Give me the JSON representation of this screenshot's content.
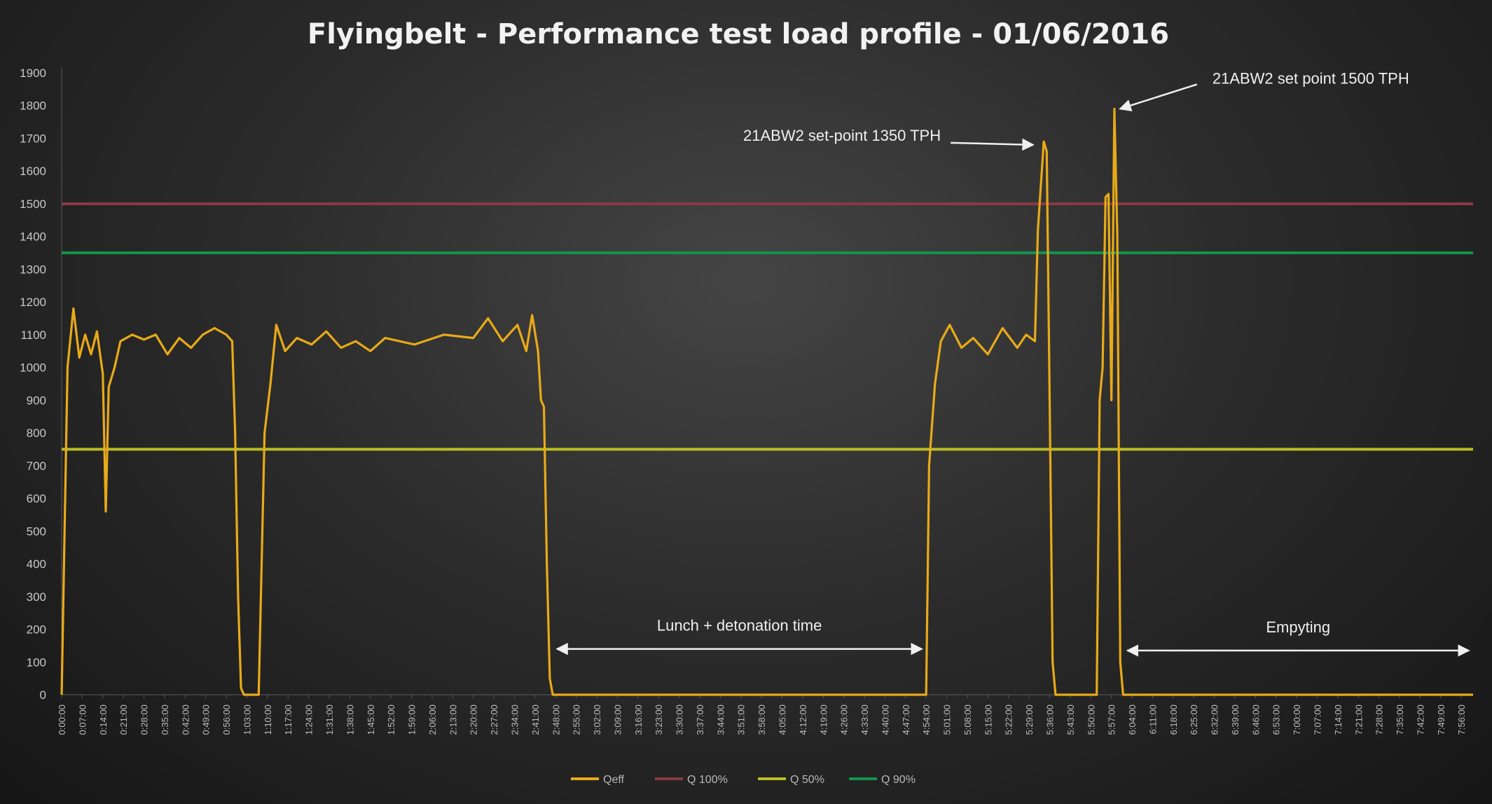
{
  "chart_data": {
    "type": "line",
    "title": "Flyingbelt - Performance test load profile - 01/06/2016",
    "xlabel": "",
    "ylabel": "",
    "ylim": [
      0,
      1900
    ],
    "yticks": [
      0,
      100,
      200,
      300,
      400,
      500,
      600,
      700,
      800,
      900,
      1000,
      1100,
      1200,
      1300,
      1400,
      1500,
      1600,
      1700,
      1800,
      1900
    ],
    "xlim": [
      "0:00:00",
      "8:00:00"
    ],
    "x_tick_interval_min": 7,
    "grid": false,
    "legend": "bottom",
    "series": [
      {
        "name": "Qeff",
        "color": "#e8aa18",
        "points": [
          [
            "0:00",
            0
          ],
          [
            "0:02",
            1000
          ],
          [
            "0:04",
            1180
          ],
          [
            "0:06",
            1030
          ],
          [
            "0:08",
            1100
          ],
          [
            "0:10",
            1040
          ],
          [
            "0:12",
            1110
          ],
          [
            "0:14",
            980
          ],
          [
            "0:15",
            560
          ],
          [
            "0:16",
            940
          ],
          [
            "0:18",
            1000
          ],
          [
            "0:20",
            1080
          ],
          [
            "0:24",
            1100
          ],
          [
            "0:28",
            1085
          ],
          [
            "0:32",
            1100
          ],
          [
            "0:36",
            1040
          ],
          [
            "0:40",
            1090
          ],
          [
            "0:44",
            1060
          ],
          [
            "0:48",
            1100
          ],
          [
            "0:52",
            1120
          ],
          [
            "0:56",
            1100
          ],
          [
            "0:58",
            1080
          ],
          [
            "0:59",
            800
          ],
          [
            "1:00",
            300
          ],
          [
            "1:01",
            20
          ],
          [
            "1:02",
            0
          ],
          [
            "1:05",
            0
          ],
          [
            "1:07",
            0
          ],
          [
            "1:08",
            400
          ],
          [
            "1:09",
            800
          ],
          [
            "1:11",
            950
          ],
          [
            "1:13",
            1130
          ],
          [
            "1:16",
            1050
          ],
          [
            "1:20",
            1090
          ],
          [
            "1:25",
            1070
          ],
          [
            "1:30",
            1110
          ],
          [
            "1:35",
            1060
          ],
          [
            "1:40",
            1080
          ],
          [
            "1:45",
            1050
          ],
          [
            "1:50",
            1090
          ],
          [
            "2:00",
            1070
          ],
          [
            "2:10",
            1100
          ],
          [
            "2:20",
            1090
          ],
          [
            "2:25",
            1150
          ],
          [
            "2:30",
            1080
          ],
          [
            "2:35",
            1130
          ],
          [
            "2:38",
            1050
          ],
          [
            "2:40",
            1160
          ],
          [
            "2:42",
            1050
          ],
          [
            "2:43",
            900
          ],
          [
            "2:44",
            880
          ],
          [
            "2:45",
            400
          ],
          [
            "2:46",
            50
          ],
          [
            "2:47",
            0
          ],
          [
            "3:00",
            0
          ],
          [
            "3:30",
            0
          ],
          [
            "4:00",
            0
          ],
          [
            "4:30",
            0
          ],
          [
            "4:54",
            0
          ],
          [
            "4:55",
            700
          ],
          [
            "4:57",
            950
          ],
          [
            "4:59",
            1080
          ],
          [
            "5:02",
            1130
          ],
          [
            "5:06",
            1060
          ],
          [
            "5:10",
            1090
          ],
          [
            "5:15",
            1040
          ],
          [
            "5:20",
            1120
          ],
          [
            "5:25",
            1060
          ],
          [
            "5:28",
            1100
          ],
          [
            "5:31",
            1080
          ],
          [
            "5:32",
            1420
          ],
          [
            "5:34",
            1690
          ],
          [
            "5:35",
            1660
          ],
          [
            "5:36",
            900
          ],
          [
            "5:37",
            100
          ],
          [
            "5:38",
            0
          ],
          [
            "5:47",
            0
          ],
          [
            "5:52",
            0
          ],
          [
            "5:53",
            900
          ],
          [
            "5:54",
            1000
          ],
          [
            "5:55",
            1520
          ],
          [
            "5:56",
            1530
          ],
          [
            "5:57",
            900
          ],
          [
            "5:58",
            1790
          ],
          [
            "5:59",
            1400
          ],
          [
            "6:00",
            100
          ],
          [
            "6:01",
            0
          ],
          [
            "6:30",
            0
          ],
          [
            "7:00",
            0
          ],
          [
            "7:30",
            0
          ],
          [
            "8:00",
            0
          ]
        ]
      },
      {
        "name": "Q 100%",
        "color": "#8a3a42",
        "values": [
          1500,
          1500
        ]
      },
      {
        "name": "Q 50%",
        "color": "#bcbc22",
        "values": [
          750,
          750
        ]
      },
      {
        "name": "Q 90%",
        "color": "#12944a",
        "values": [
          1350,
          1350
        ]
      }
    ],
    "annotations": [
      {
        "text": "21ABW2 set-point 1350 TPH",
        "x": "5:34",
        "y": 1680
      },
      {
        "text": "21ABW2 set point 1500 TPH",
        "x": "5:58",
        "y": 1790
      },
      {
        "text": "Lunch + detonation time",
        "from": "2:47",
        "to": "4:54",
        "y": 140
      },
      {
        "text": "Empyting",
        "from": "6:01",
        "to": "8:00",
        "y": 135
      }
    ]
  }
}
